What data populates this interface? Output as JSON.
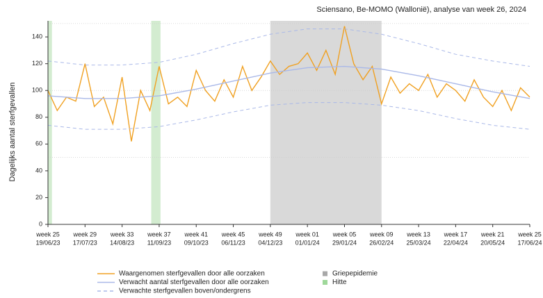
{
  "chart_data": {
    "type": "line",
    "title": "Sciensano, Be-MOMO (Wallonië), analyse van week 26, 2024",
    "y_label": "Dagelijks aantal sterfgevallen",
    "xlim": [
      "2023-06-19",
      "2024-06-17"
    ],
    "xticks": [
      {
        "value": "2023-06-19",
        "label": "week 25",
        "sublabel": "19/06/23"
      },
      {
        "value": "2023-07-17",
        "label": "week 29",
        "sublabel": "17/07/23"
      },
      {
        "value": "2023-08-14",
        "label": "week 33",
        "sublabel": "14/08/23"
      },
      {
        "value": "2023-09-11",
        "label": "week 37",
        "sublabel": "11/09/23"
      },
      {
        "value": "2023-10-09",
        "label": "week 41",
        "sublabel": "09/10/23"
      },
      {
        "value": "2023-11-06",
        "label": "week 45",
        "sublabel": "06/11/23"
      },
      {
        "value": "2023-12-04",
        "label": "week 49",
        "sublabel": "04/12/23"
      },
      {
        "value": "2024-01-01",
        "label": "week 01",
        "sublabel": "01/01/24"
      },
      {
        "value": "2024-01-29",
        "label": "week 05",
        "sublabel": "29/01/24"
      },
      {
        "value": "2024-02-26",
        "label": "week 09",
        "sublabel": "26/02/24"
      },
      {
        "value": "2024-03-25",
        "label": "week 13",
        "sublabel": "25/03/24"
      },
      {
        "value": "2024-04-22",
        "label": "week 17",
        "sublabel": "22/04/24"
      },
      {
        "value": "2024-05-20",
        "label": "week 21",
        "sublabel": "20/05/24"
      },
      {
        "value": "2024-06-17",
        "label": "week 25",
        "sublabel": "17/06/24"
      }
    ],
    "ylim": [
      0,
      152
    ],
    "yticks": [
      0,
      20,
      40,
      60,
      80,
      100,
      120,
      140
    ],
    "reference_lines": [
      50,
      100,
      150
    ],
    "regions": [
      {
        "name": "Griepepidemie",
        "color": "#d9d9d9",
        "spans": [
          [
            "2023-12-04",
            "2024-02-26"
          ]
        ]
      },
      {
        "name": "Hitte",
        "color": "#d3ecd0",
        "spans": [
          [
            "2023-06-19",
            "2023-06-22"
          ],
          [
            "2023-09-05",
            "2023-09-12"
          ]
        ]
      }
    ],
    "series": [
      {
        "name": "Waargenomen sterfgevallen door alle oorzaken",
        "color": "#f0a020",
        "dash": false,
        "x": [
          "2023-06-19",
          "2023-06-26",
          "2023-07-03",
          "2023-07-10",
          "2023-07-17",
          "2023-07-24",
          "2023-07-31",
          "2023-08-07",
          "2023-08-14",
          "2023-08-21",
          "2023-08-28",
          "2023-09-04",
          "2023-09-11",
          "2023-09-18",
          "2023-09-25",
          "2023-10-02",
          "2023-10-09",
          "2023-10-16",
          "2023-10-23",
          "2023-10-30",
          "2023-11-06",
          "2023-11-13",
          "2023-11-20",
          "2023-11-27",
          "2023-12-04",
          "2023-12-11",
          "2023-12-18",
          "2023-12-25",
          "2024-01-01",
          "2024-01-08",
          "2024-01-15",
          "2024-01-22",
          "2024-01-29",
          "2024-02-05",
          "2024-02-12",
          "2024-02-19",
          "2024-02-26",
          "2024-03-04",
          "2024-03-11",
          "2024-03-18",
          "2024-03-25",
          "2024-04-01",
          "2024-04-08",
          "2024-04-15",
          "2024-04-22",
          "2024-04-29",
          "2024-05-06",
          "2024-05-13",
          "2024-05-20",
          "2024-05-27",
          "2024-06-03",
          "2024-06-10",
          "2024-06-17"
        ],
        "values": [
          100,
          85,
          95,
          92,
          120,
          88,
          95,
          75,
          110,
          62,
          100,
          85,
          118,
          90,
          95,
          88,
          115,
          100,
          92,
          108,
          95,
          118,
          100,
          110,
          122,
          112,
          118,
          120,
          128,
          115,
          130,
          112,
          148,
          120,
          108,
          118,
          90,
          110,
          98,
          105,
          100,
          112,
          95,
          105,
          100,
          92,
          108,
          95,
          88,
          100,
          85,
          102,
          95
        ]
      },
      {
        "name": "Verwacht aantal sterfgevallen door alle oorzaken",
        "color": "#a9b8e8",
        "dash": false,
        "x": [
          "2023-06-19",
          "2023-07-17",
          "2023-08-14",
          "2023-09-11",
          "2023-10-09",
          "2023-11-06",
          "2023-12-04",
          "2024-01-01",
          "2024-01-29",
          "2024-02-26",
          "2024-03-25",
          "2024-04-22",
          "2024-05-20",
          "2024-06-17"
        ],
        "values": [
          96,
          94,
          94,
          96,
          101,
          107,
          113,
          117,
          118,
          116,
          111,
          105,
          99,
          94
        ]
      },
      {
        "name": "Verwachte sterfgevallen boven/ondergrens",
        "color": "#a9b8e8",
        "dash": true,
        "x": [
          "2023-06-19",
          "2023-07-17",
          "2023-08-14",
          "2023-09-11",
          "2023-10-09",
          "2023-11-06",
          "2023-12-04",
          "2024-01-01",
          "2024-01-29",
          "2024-02-26",
          "2024-03-25",
          "2024-04-22",
          "2024-05-20",
          "2024-06-17"
        ],
        "values": [
          122,
          119,
          119,
          121,
          127,
          135,
          142,
          146,
          146,
          142,
          135,
          127,
          122,
          118
        ],
        "lower": [
          74,
          71,
          71,
          73,
          78,
          84,
          89,
          91,
          91,
          89,
          85,
          79,
          74,
          71
        ]
      }
    ]
  }
}
